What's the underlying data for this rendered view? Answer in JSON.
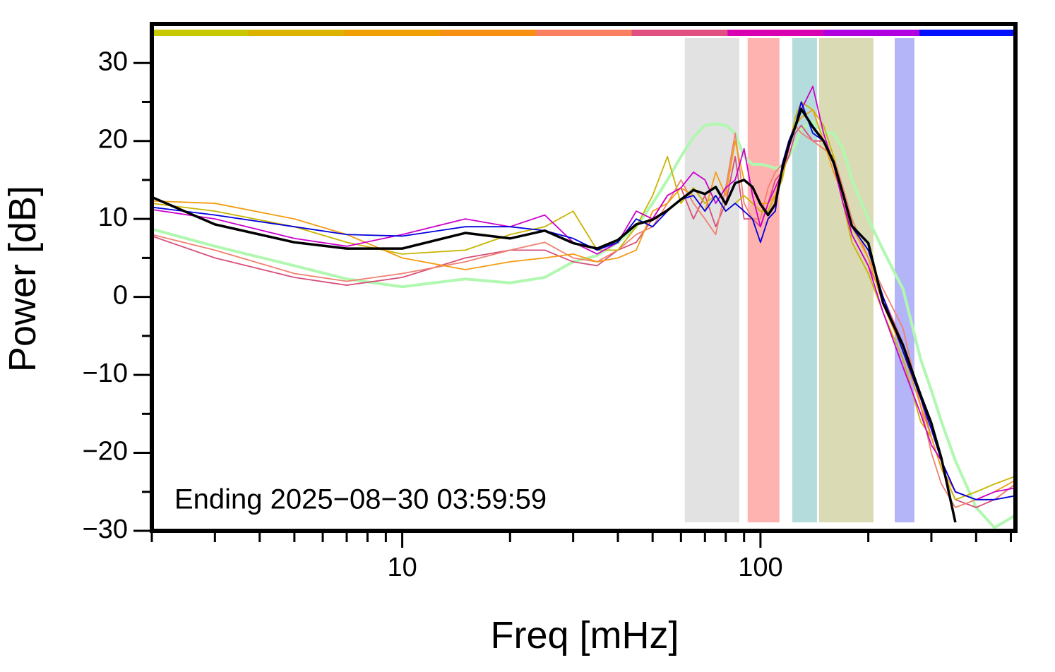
{
  "chart_data": {
    "type": "line",
    "xlabel": "Freq [mHz]",
    "ylabel": "Power [dB]",
    "annotation": "Ending 2025−08−30 03:59:59",
    "xscale": "log",
    "xlim": [
      2,
      515
    ],
    "ylim": [
      -30,
      35
    ],
    "xticks": [
      10,
      100
    ],
    "xminorticks": [
      2,
      3,
      4,
      5,
      6,
      7,
      8,
      9,
      20,
      30,
      40,
      50,
      60,
      70,
      80,
      90,
      200,
      300,
      400,
      500
    ],
    "yticks": [
      {
        "value": -30,
        "label": "−30"
      },
      {
        "value": -20,
        "label": "−20"
      },
      {
        "value": -10,
        "label": "−10"
      },
      0,
      10,
      20,
      30
    ],
    "yminorticks": [
      -25,
      -15,
      -5,
      5,
      15,
      25
    ],
    "top_bar_colors": [
      "#c8c800",
      "#dcb400",
      "#f0a000",
      "#f59010",
      "#f88060",
      "#e05080",
      "#d800b0",
      "#b000e0",
      "#0010ff"
    ],
    "bands": [
      {
        "x": [
          61.5,
          87.3
        ],
        "color": "#e2e2e2"
      },
      {
        "x": [
          92.1,
          113
        ],
        "color": "#ffb3b0"
      },
      {
        "x": [
          122.7,
          143.8
        ],
        "color": "#b5dcdc"
      },
      {
        "x": [
          145.8,
          206.8
        ],
        "color": "#dadab4"
      },
      {
        "x": [
          237,
          269
        ],
        "color": "#b4b4f8"
      }
    ],
    "x": [
      2,
      3,
      5,
      7,
      10,
      15,
      20,
      25,
      30,
      35,
      40,
      45,
      50,
      55,
      60,
      65,
      70,
      75,
      80,
      85,
      90,
      95,
      100,
      105,
      110,
      115,
      120,
      125,
      130,
      140,
      150,
      160,
      170,
      180,
      200,
      220,
      250,
      280,
      300,
      320,
      350,
      400,
      450,
      515
    ],
    "series": [
      {
        "color": "#b0f8b0",
        "width": 4,
        "values": [
          8.7,
          6.5,
          4,
          2.3,
          1.3,
          2.3,
          1.8,
          2.5,
          4.5,
          5.3,
          7,
          9,
          12,
          15,
          18,
          20.5,
          22,
          22.2,
          22,
          21,
          18,
          17,
          17,
          16.8,
          16.5,
          16.8,
          18,
          19.5,
          21.5,
          22.5,
          21,
          21,
          19,
          15,
          10,
          6,
          1,
          -8,
          -12,
          -16,
          -21,
          -27,
          -29.6,
          -28
        ]
      },
      {
        "color": "#d64f7a",
        "width": 1.8,
        "values": [
          7.8,
          5,
          2.5,
          1.5,
          2.5,
          5,
          6,
          6,
          4.5,
          4,
          6,
          7,
          10,
          13,
          14,
          10,
          13,
          9,
          12,
          18,
          10,
          10,
          9,
          12,
          15,
          16,
          18,
          21,
          22,
          20,
          20,
          17,
          13,
          8,
          4,
          0,
          -6,
          -13,
          -18,
          -22,
          -26,
          -27,
          -26,
          -24
        ]
      },
      {
        "color": "#f08070",
        "width": 1.8,
        "values": [
          8,
          6,
          3,
          2,
          3,
          4.5,
          6,
          7,
          5,
          4.5,
          6,
          8,
          9,
          12,
          15,
          12,
          10,
          8,
          14,
          21,
          12,
          10,
          10,
          14,
          16,
          17,
          20,
          22,
          21,
          20,
          19,
          18,
          14,
          10,
          5,
          1,
          -4,
          -14,
          -20,
          -24,
          -27,
          -26,
          -26,
          -24
        ]
      },
      {
        "color": "#c8b400",
        "width": 1.8,
        "values": [
          12,
          11,
          9,
          7,
          5.5,
          6,
          8,
          9,
          11,
          6,
          6,
          9,
          13,
          18,
          12,
          14,
          12,
          13,
          11,
          12,
          13,
          12,
          11,
          11,
          13,
          15,
          19,
          23,
          25,
          24,
          22,
          18,
          12,
          7,
          3,
          -2,
          -8,
          -16,
          -18,
          -22,
          -26,
          -25,
          -24,
          -23
        ]
      },
      {
        "color": "#f39c12",
        "width": 1.8,
        "values": [
          12.3,
          12,
          10,
          8,
          5,
          3.5,
          4.5,
          5,
          5.5,
          4.5,
          5,
          6,
          11,
          12,
          14,
          13,
          11,
          16,
          13,
          20,
          15,
          14,
          12,
          12,
          13,
          16,
          19,
          22,
          23,
          24,
          20,
          16,
          13,
          9,
          5,
          -1,
          -7,
          -14,
          -18,
          -22,
          -25,
          -26,
          -25,
          -23.5
        ]
      },
      {
        "color": "#cc00cc",
        "width": 1.8,
        "values": [
          11.2,
          10,
          7.5,
          6.5,
          8,
          10,
          9,
          10.5,
          7,
          5.5,
          7,
          11,
          10,
          13,
          14,
          16,
          15,
          12,
          14,
          15,
          19,
          13,
          9,
          12,
          14,
          16,
          19,
          22,
          24,
          27,
          21,
          17,
          12,
          8,
          4,
          -2,
          -9,
          -15,
          -19,
          -21,
          -25,
          -26,
          -25,
          -24.5
        ]
      },
      {
        "color": "#0000dd",
        "width": 1.8,
        "values": [
          11.5,
          10.5,
          9,
          8,
          7.8,
          9,
          9,
          8.5,
          7.5,
          6,
          7,
          10,
          9,
          11,
          12.5,
          13,
          11,
          13,
          11,
          12,
          11,
          10,
          7,
          10,
          11,
          17,
          20,
          22,
          25,
          21,
          20,
          17,
          13,
          9,
          6,
          0,
          -7,
          -13,
          -17,
          -21,
          -25,
          -26,
          -26,
          -25.5
        ]
      },
      {
        "color": "#000000",
        "width": 3.5,
        "values": [
          12.8,
          9.3,
          7,
          6.2,
          6.2,
          8.2,
          7.5,
          8.5,
          6.9,
          6.2,
          7.3,
          9.3,
          9.9,
          11.1,
          12.5,
          13.7,
          13.2,
          14.1,
          11.9,
          14.6,
          15,
          14.1,
          11.9,
          10.5,
          11.9,
          16.4,
          19.5,
          21.8,
          24.1,
          21.8,
          20,
          17.3,
          13.2,
          9.1,
          6.9,
          -0.8,
          -6.2,
          -12.6,
          -16.2,
          -20.7,
          -28.9,
          null,
          null,
          null
        ]
      }
    ]
  }
}
